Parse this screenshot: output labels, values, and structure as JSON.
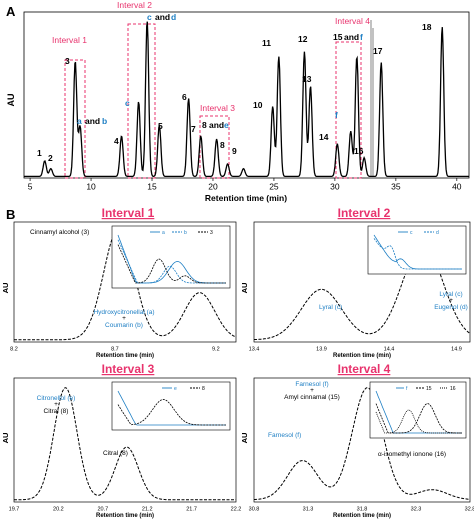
{
  "panelA": {
    "letter": "A",
    "ylabel": "AU",
    "xlabel": "Retention time (min)",
    "xticks": [
      "5",
      "10",
      "15",
      "20",
      "25",
      "30",
      "35",
      "40"
    ],
    "interval_labels": [
      "Interval 1",
      "Interval 2",
      "Interval 3",
      "Interval 4"
    ],
    "peak_labels": [
      {
        "text": "1",
        "color": "#000000"
      },
      {
        "text": "2",
        "color": "#000000"
      },
      {
        "text": "3",
        "color": "#000000"
      },
      {
        "text": "a",
        "color": "#1e7fc4"
      },
      {
        "text": "and",
        "color": "#000000"
      },
      {
        "text": "b",
        "color": "#1e7fc4"
      },
      {
        "text": "4",
        "color": "#000000"
      },
      {
        "text": "c",
        "color": "#1e7fc4"
      },
      {
        "text": "c",
        "color": "#1e7fc4"
      },
      {
        "text": "and",
        "color": "#000000"
      },
      {
        "text": "d",
        "color": "#1e7fc4"
      },
      {
        "text": "5",
        "color": "#000000"
      },
      {
        "text": "6",
        "color": "#000000"
      },
      {
        "text": "7",
        "color": "#000000"
      },
      {
        "text": "8",
        "color": "#000000"
      },
      {
        "text": "and",
        "color": "#000000"
      },
      {
        "text": "e",
        "color": "#1e7fc4"
      },
      {
        "text": "8",
        "color": "#000000"
      },
      {
        "text": "9",
        "color": "#000000"
      },
      {
        "text": "10",
        "color": "#000000"
      },
      {
        "text": "11",
        "color": "#000000"
      },
      {
        "text": "12",
        "color": "#000000"
      },
      {
        "text": "13",
        "color": "#000000"
      },
      {
        "text": "14",
        "color": "#000000"
      },
      {
        "text": "f",
        "color": "#1e7fc4"
      },
      {
        "text": "15",
        "color": "#000000"
      },
      {
        "text": "and",
        "color": "#000000"
      },
      {
        "text": "f",
        "color": "#1e7fc4"
      },
      {
        "text": "16",
        "color": "#000000"
      },
      {
        "text": "17",
        "color": "#000000"
      },
      {
        "text": "18",
        "color": "#000000"
      }
    ]
  },
  "panelB": {
    "letter": "B",
    "ylabel": "AU",
    "xlabel": "Retention time (min)",
    "sub": [
      {
        "title": "Interval 1",
        "xticks": [
          "8.2",
          "8.7",
          "9.2"
        ],
        "labels": [
          {
            "text": "Cinnamyl alcohol (3)",
            "color": "#000000"
          },
          {
            "text": "Hydroxycitronellal (a)",
            "color": "#1e7fc4"
          },
          {
            "text": "+",
            "color": "#000000"
          },
          {
            "text": "Coumarin (b)",
            "color": "#1e7fc4"
          }
        ],
        "legend": [
          "a",
          "b",
          "3"
        ]
      },
      {
        "title": "Interval 2",
        "xticks": [
          "13.4",
          "13.9",
          "14.4",
          "14.9"
        ],
        "labels": [
          {
            "text": "Lyral (c)",
            "color": "#1e7fc4"
          },
          {
            "text": "Lyral (c)",
            "color": "#1e7fc4"
          },
          {
            "text": "+",
            "color": "#000000"
          },
          {
            "text": "Eugenol (d)",
            "color": "#1e7fc4"
          }
        ],
        "legend": [
          "c",
          "d"
        ]
      },
      {
        "title": "Interval 3",
        "xticks": [
          "19.7",
          "20.2",
          "20.7",
          "21.2",
          "21.7",
          "22.2"
        ],
        "labels": [
          {
            "text": "Citronellol (e)",
            "color": "#1e7fc4"
          },
          {
            "text": "+",
            "color": "#000000"
          },
          {
            "text": "Citral (8)",
            "color": "#000000"
          },
          {
            "text": "Citral (8)",
            "color": "#000000"
          }
        ],
        "legend": [
          "e",
          "8"
        ]
      },
      {
        "title": "Interval 4",
        "xticks": [
          "30.8",
          "31.3",
          "31.8",
          "32.3",
          "32.8"
        ],
        "labels": [
          {
            "text": "Farnesol (f)",
            "color": "#1e7fc4"
          },
          {
            "text": "+",
            "color": "#000000"
          },
          {
            "text": "Amyl cinnamal (15)",
            "color": "#000000"
          },
          {
            "text": "Farnesol (f)",
            "color": "#1e7fc4"
          },
          {
            "text": "α-isomethyl ionone (16)",
            "color": "#000000"
          }
        ],
        "legend": [
          "f",
          "15",
          "16"
        ]
      }
    ]
  },
  "colors": {
    "highlight": "#e8336d",
    "compound": "#1e7fc4",
    "trace": "#000000",
    "solvent": "#9a9a9a"
  },
  "chart_data": [
    {
      "type": "line",
      "title": "",
      "xlabel": "Retention time (min)",
      "ylabel": "AU",
      "xlim": [
        4.5,
        41
      ],
      "x_ticks": [
        5,
        10,
        15,
        20,
        25,
        30,
        35,
        40
      ],
      "peaks": [
        {
          "label": "1",
          "x": 6.2,
          "height": 0.1
        },
        {
          "label": "2",
          "x": 6.7,
          "height": 0.05
        },
        {
          "label": "3",
          "x": 8.7,
          "height": 0.74
        },
        {
          "label": "a and b",
          "x": 9.1,
          "height": 0.32
        },
        {
          "label": "4",
          "x": 12.5,
          "height": 0.26
        },
        {
          "label": "c",
          "x": 13.9,
          "height": 0.48
        },
        {
          "label": "c and d",
          "x": 14.6,
          "height": 1.0
        },
        {
          "label": "5",
          "x": 15.6,
          "height": 0.33
        },
        {
          "label": "6",
          "x": 18.0,
          "height": 0.5
        },
        {
          "label": "7",
          "x": 19.0,
          "height": 0.26
        },
        {
          "label": "8 and e",
          "x": 20.3,
          "height": 0.24
        },
        {
          "label": "8",
          "x": 21.2,
          "height": 0.08
        },
        {
          "label": "9",
          "x": 22.5,
          "height": 0.05
        },
        {
          "label": "10",
          "x": 24.9,
          "height": 0.45
        },
        {
          "label": "11",
          "x": 25.4,
          "height": 0.77
        },
        {
          "label": "12",
          "x": 27.5,
          "height": 0.8
        },
        {
          "label": "13",
          "x": 28.0,
          "height": 0.58
        },
        {
          "label": "14",
          "x": 30.2,
          "height": 0.21
        },
        {
          "label": "f",
          "x": 31.3,
          "height": 0.29
        },
        {
          "label": "15 and f",
          "x": 31.8,
          "height": 0.77
        },
        {
          "label": "16",
          "x": 32.4,
          "height": 0.12
        },
        {
          "label": "17",
          "x": 33.8,
          "height": 0.73
        },
        {
          "label": "18",
          "x": 38.8,
          "height": 0.96
        }
      ],
      "intervals": [
        {
          "label": "Interval 1",
          "x": [
            8.2,
            9.7
          ]
        },
        {
          "label": "Interval 2",
          "x": [
            13.4,
            15.0
          ]
        },
        {
          "label": "Interval 3",
          "x": [
            19.7,
            22.2
          ]
        },
        {
          "label": "Interval 4",
          "x": [
            30.8,
            32.9
          ]
        }
      ]
    },
    {
      "type": "line",
      "title": "Interval 1",
      "xlabel": "Retention time (min)",
      "ylabel": "AU",
      "xlim": [
        8.2,
        9.3
      ],
      "x_ticks": [
        8.2,
        8.7,
        9.2
      ],
      "peaks": [
        {
          "label": "Cinnamyl alcohol (3)",
          "x": 8.72,
          "height": 1.0
        },
        {
          "label": "Hydroxycitronellal (a) + Coumarin (b)",
          "x": 9.12,
          "height": 0.42
        }
      ]
    },
    {
      "type": "line",
      "title": "Interval 2",
      "xlabel": "Retention time (min)",
      "ylabel": "AU",
      "xlim": [
        13.4,
        15.0
      ],
      "x_ticks": [
        13.4,
        13.9,
        14.4,
        14.9
      ],
      "peaks": [
        {
          "label": "Lyral (c)",
          "x": 13.9,
          "height": 0.45
        },
        {
          "label": "Lyral (c) + Eugenol (d)",
          "x": 14.65,
          "height": 0.85
        }
      ]
    },
    {
      "type": "line",
      "title": "Interval 3",
      "xlabel": "Retention time (min)",
      "ylabel": "AU",
      "xlim": [
        19.7,
        22.2
      ],
      "x_ticks": [
        19.7,
        20.2,
        20.7,
        21.2,
        21.7,
        22.2
      ],
      "peaks": [
        {
          "label": "Citronellol (e) + Citral (8)",
          "x": 20.28,
          "height": 1.0
        },
        {
          "label": "Citral (8)",
          "x": 20.97,
          "height": 0.47
        }
      ]
    },
    {
      "type": "line",
      "title": "Interval 4",
      "xlabel": "Retention time (min)",
      "ylabel": "AU",
      "xlim": [
        30.8,
        32.8
      ],
      "x_ticks": [
        30.8,
        31.3,
        31.8,
        32.3,
        32.8
      ],
      "peaks": [
        {
          "label": "Farnesol (f)",
          "x": 31.25,
          "height": 0.35
        },
        {
          "label": "Farnesol (f) + Amyl cinnamal (15)",
          "x": 31.85,
          "height": 1.0
        },
        {
          "label": "α-isomethyl ionone (16)",
          "x": 32.45,
          "height": 0.09
        }
      ]
    }
  ]
}
